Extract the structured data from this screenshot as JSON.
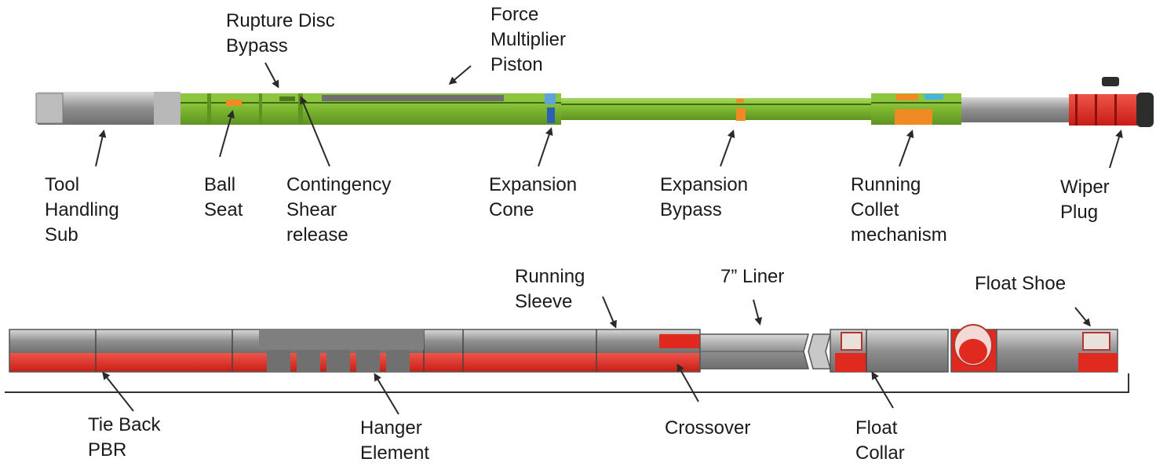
{
  "top_tool": {
    "labels": {
      "rupture_disc_bypass": [
        "Rupture Disc",
        "Bypass"
      ],
      "force_multiplier_piston": [
        "Force",
        "Multiplier",
        "Piston"
      ],
      "tool_handling_sub": [
        "Tool",
        "Handling",
        "Sub"
      ],
      "ball_seat": [
        "Ball",
        "Seat"
      ],
      "contingency_shear_release": [
        "Contingency",
        "Shear",
        "release"
      ],
      "expansion_cone": [
        "Expansion",
        "Cone"
      ],
      "expansion_bypass": [
        "Expansion",
        "Bypass"
      ],
      "running_collet_mechanism": [
        "Running",
        "Collet",
        "mechanism"
      ],
      "wiper_plug": [
        "Wiper",
        "Plug"
      ]
    }
  },
  "bottom_tool": {
    "labels": {
      "running_sleeve": [
        "Running",
        "Sleeve"
      ],
      "liner_7in": [
        "7” Liner"
      ],
      "float_shoe": [
        "Float Shoe"
      ],
      "tie_back_pbr": [
        "Tie Back",
        "PBR"
      ],
      "hanger_element": [
        "Hanger",
        "Element"
      ],
      "crossover": [
        "Crossover"
      ],
      "float_collar": [
        "Float",
        "Collar"
      ]
    }
  },
  "colors": {
    "green": "#7cb82f",
    "green_dark": "#4e7a1c",
    "gray": "#8d8d8d",
    "gray_light": "#c4c4c4",
    "red": "#e0291f",
    "orange": "#f08a24",
    "blue": "#2f5fb5",
    "text": "#1a1a1a"
  }
}
